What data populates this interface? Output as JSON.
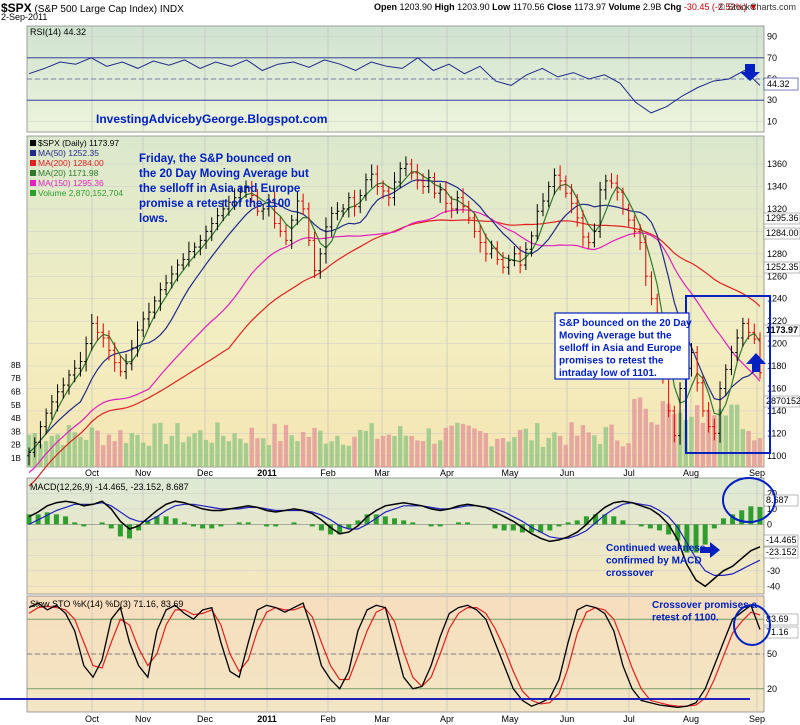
{
  "header": {
    "symbol": "$SPX",
    "name": "(S&P 500 Large Cap Index)",
    "exchange": "INDX",
    "date": "2-Sep-2011",
    "open_label": "Open",
    "open": "1203.90",
    "high_label": "High",
    "high": "1203.90",
    "low_label": "Low",
    "low": "1170.56",
    "close_label": "Close",
    "close": "1173.97",
    "volume_label": "Volume",
    "volume": "2.9B",
    "chg_label": "Chg",
    "chg": "-30.45 (-2.53%)",
    "watermark": "© StockCharts.com"
  },
  "colors": {
    "price_up": "#000000",
    "price_down": "#e00000",
    "ma50": "#1f2a8a",
    "ma200": "#e02020",
    "ma20": "#2d7a2d",
    "ma150": "#e020c0",
    "rsi_line": "#1f2a8a",
    "macd": "#000000",
    "macd_signal": "#2020c0",
    "histogram": "#2e9e2e",
    "sto_k": "#000000",
    "sto_d": "#e02020",
    "annotation": "#0020c0"
  },
  "chart_data": [
    {
      "type": "line",
      "panel": "rsi",
      "title": "RSI(14) 44.32",
      "yticks": [
        10,
        30,
        50,
        70,
        90
      ],
      "ylim": [
        0,
        100
      ],
      "levels": [
        30,
        70
      ],
      "last_label": "44.32",
      "series": [
        {
          "name": "RSI(14)",
          "values": [
            55,
            60,
            66,
            64,
            70,
            62,
            66,
            60,
            67,
            63,
            68,
            60,
            66,
            62,
            68,
            58,
            64,
            66,
            61,
            68,
            64,
            58,
            66,
            62,
            60,
            70,
            58,
            64,
            55,
            62,
            48,
            44,
            54,
            60,
            52,
            56,
            50,
            54,
            46,
            28,
            18,
            24,
            34,
            42,
            48,
            50,
            58,
            44
          ]
        }
      ]
    },
    {
      "type": "bar",
      "panel": "price",
      "title": "$SPX (Daily) 1173.97",
      "ylim": [
        1090,
        1385
      ],
      "yticks": [
        1100,
        1120,
        1140,
        1160,
        1180,
        1200,
        1220,
        1240,
        1260,
        1280,
        1300,
        1320,
        1340,
        1360
      ],
      "xtick_labels": [
        "Oct",
        "Nov",
        "Dec",
        "2011",
        "Feb",
        "Mar",
        "Apr",
        "May",
        "Jun",
        "Jul",
        "Aug",
        "Sep"
      ],
      "volume_ticks": [
        "1B",
        "2B",
        "3B",
        "4B",
        "5B",
        "6B",
        "7B",
        "8B"
      ],
      "legend": [
        "$SPX (Daily) 1173.97",
        "MA(50) 1252.35",
        "MA(200) 1284.00",
        "MA(20) 1171.98",
        "MA(150) 1295.36",
        "Volume 2,870,152,704"
      ],
      "right_labels": [
        "1295.36",
        "1284.00",
        "1252.35",
        "1173.97",
        "2870152"
      ],
      "close_series": [
        1103,
        1112,
        1126,
        1138,
        1148,
        1157,
        1163,
        1172,
        1178,
        1184,
        1200,
        1218,
        1210,
        1205,
        1194,
        1183,
        1175,
        1182,
        1196,
        1212,
        1222,
        1228,
        1238,
        1248,
        1254,
        1262,
        1270,
        1275,
        1282,
        1286,
        1292,
        1300,
        1307,
        1314,
        1320,
        1326,
        1330,
        1335,
        1339,
        1332,
        1318,
        1320,
        1327,
        1307,
        1300,
        1292,
        1310,
        1327,
        1320,
        1292,
        1265,
        1280,
        1304,
        1316,
        1318,
        1320,
        1330,
        1322,
        1332,
        1346,
        1351,
        1340,
        1336,
        1330,
        1344,
        1356,
        1360,
        1352,
        1345,
        1340,
        1348,
        1334,
        1337,
        1325,
        1320,
        1330,
        1322,
        1312,
        1300,
        1290,
        1280,
        1285,
        1275,
        1268,
        1274,
        1280,
        1270,
        1284,
        1296,
        1318,
        1327,
        1340,
        1350,
        1345,
        1334,
        1325,
        1312,
        1295,
        1290,
        1300,
        1337,
        1345,
        1343,
        1335,
        1320,
        1310,
        1300,
        1290,
        1260,
        1240,
        1220,
        1170,
        1140,
        1118,
        1160,
        1178,
        1192,
        1165,
        1140,
        1126,
        1120,
        1160,
        1177,
        1192,
        1205,
        1218,
        1210,
        1204,
        1173.97
      ]
    },
    {
      "type": "line",
      "panel": "macd",
      "title": "MACD(12,26,9) -14.465, -23.152, 8.687",
      "ylim": [
        -45,
        30
      ],
      "yticks": [
        -40,
        -30,
        -20,
        -10,
        0,
        10,
        20
      ],
      "right_labels": [
        "8.687",
        "-14.465",
        "-23.152"
      ],
      "series": [
        {
          "name": "MACD",
          "values": [
            5,
            8,
            12,
            14,
            15,
            14,
            12,
            13,
            15,
            10,
            2,
            -3,
            -1,
            4,
            9,
            13,
            15,
            14,
            12,
            10,
            9,
            9,
            10,
            11,
            12,
            11,
            9,
            8,
            9,
            10,
            9,
            7,
            3,
            -2,
            -6,
            -5,
            -1,
            5,
            9,
            12,
            13,
            14,
            13,
            12,
            10,
            9,
            10,
            12,
            13,
            12,
            11,
            8,
            5,
            2,
            -2,
            -6,
            -9,
            -11,
            -10,
            -8,
            -5,
            0,
            6,
            11,
            14,
            15,
            14,
            12,
            10,
            6,
            0,
            -10,
            -26,
            -36,
            -40,
            -35,
            -30,
            -27,
            -22,
            -17,
            -14.465
          ]
        },
        {
          "name": "Signal",
          "values": [
            0,
            3,
            6,
            9,
            11,
            13,
            13,
            13,
            14,
            12,
            8,
            4,
            2,
            2,
            5,
            9,
            12,
            13,
            13,
            12,
            11,
            10,
            10,
            10,
            11,
            11,
            10,
            9,
            9,
            9,
            9,
            8,
            6,
            3,
            -1,
            -3,
            -3,
            0,
            4,
            8,
            10,
            12,
            12,
            12,
            11,
            10,
            10,
            11,
            12,
            12,
            11,
            10,
            8,
            5,
            2,
            -2,
            -5,
            -8,
            -9,
            -9,
            -7,
            -4,
            1,
            6,
            10,
            13,
            14,
            13,
            12,
            9,
            5,
            -2,
            -12,
            -22,
            -30,
            -33,
            -33,
            -32,
            -29,
            -26,
            -23.152
          ]
        },
        {
          "name": "Histogram",
          "values": [
            5,
            5,
            6,
            5,
            4,
            1,
            -1,
            0,
            1,
            -2,
            -6,
            -7,
            -3,
            2,
            4,
            4,
            3,
            1,
            -1,
            -2,
            -2,
            -1,
            0,
            1,
            1,
            0,
            -1,
            -1,
            0,
            1,
            0,
            -1,
            -3,
            -5,
            -5,
            -2,
            2,
            5,
            5,
            4,
            3,
            2,
            1,
            0,
            -1,
            -1,
            0,
            1,
            1,
            0,
            0,
            -2,
            -3,
            -3,
            -4,
            -4,
            -4,
            -3,
            -1,
            1,
            2,
            4,
            5,
            5,
            4,
            2,
            0,
            -1,
            -2,
            -3,
            -5,
            -8,
            -14,
            -14,
            -10,
            -2,
            3,
            5,
            7,
            9,
            8.687
          ]
        }
      ]
    },
    {
      "type": "line",
      "panel": "stochastic",
      "title": "Slow STO %K(14) %D(3) 71.16, 83.69",
      "ylim": [
        0,
        100
      ],
      "yticks": [
        20,
        50,
        80
      ],
      "levels": [
        20,
        50,
        80
      ],
      "right_labels": [
        "83.69",
        "71.16"
      ],
      "series": [
        {
          "name": "%K",
          "values": [
            90,
            94,
            88,
            92,
            85,
            70,
            40,
            30,
            45,
            80,
            90,
            60,
            40,
            30,
            70,
            88,
            92,
            85,
            80,
            88,
            90,
            60,
            35,
            30,
            60,
            88,
            92,
            90,
            86,
            90,
            94,
            70,
            40,
            28,
            20,
            35,
            70,
            88,
            92,
            90,
            60,
            30,
            20,
            22,
            40,
            65,
            85,
            90,
            92,
            88,
            80,
            60,
            40,
            20,
            10,
            5,
            8,
            12,
            28,
            60,
            88,
            92,
            90,
            85,
            70,
            40,
            20,
            10,
            8,
            6,
            5,
            4,
            5,
            8,
            20,
            40,
            60,
            80,
            86,
            92,
            71.16
          ]
        },
        {
          "name": "%D",
          "values": [
            85,
            90,
            91,
            90,
            88,
            80,
            60,
            40,
            38,
            60,
            80,
            75,
            55,
            40,
            50,
            75,
            88,
            88,
            84,
            85,
            88,
            75,
            50,
            35,
            45,
            70,
            86,
            90,
            88,
            88,
            91,
            82,
            60,
            40,
            28,
            28,
            48,
            70,
            86,
            90,
            78,
            52,
            30,
            22,
            30,
            50,
            72,
            85,
            90,
            90,
            85,
            72,
            55,
            35,
            18,
            10,
            7,
            8,
            16,
            38,
            68,
            86,
            90,
            88,
            80,
            60,
            38,
            20,
            10,
            8,
            6,
            5,
            5,
            6,
            12,
            28,
            48,
            68,
            78,
            86,
            83.69
          ]
        }
      ]
    }
  ],
  "annotations": {
    "blog": "InvestingAdvicebyGeorge.Blogspot.com",
    "note1": [
      "Friday, the S&P bounced on",
      "the 20 Day Moving Average but",
      "the selloff in Asia and Europe",
      "promise a retest of the 1100",
      "lows."
    ],
    "note2": [
      "S&P bounced on the 20 Day",
      "Moving Average but the",
      "selloff in Asia and Europe",
      "promises to retest the",
      "intraday low of 1101."
    ],
    "note3": [
      "Continued weakness",
      "confirmed by MACD",
      "crossover"
    ],
    "note4": [
      "Crossover promises a",
      "retest of 1100."
    ]
  }
}
